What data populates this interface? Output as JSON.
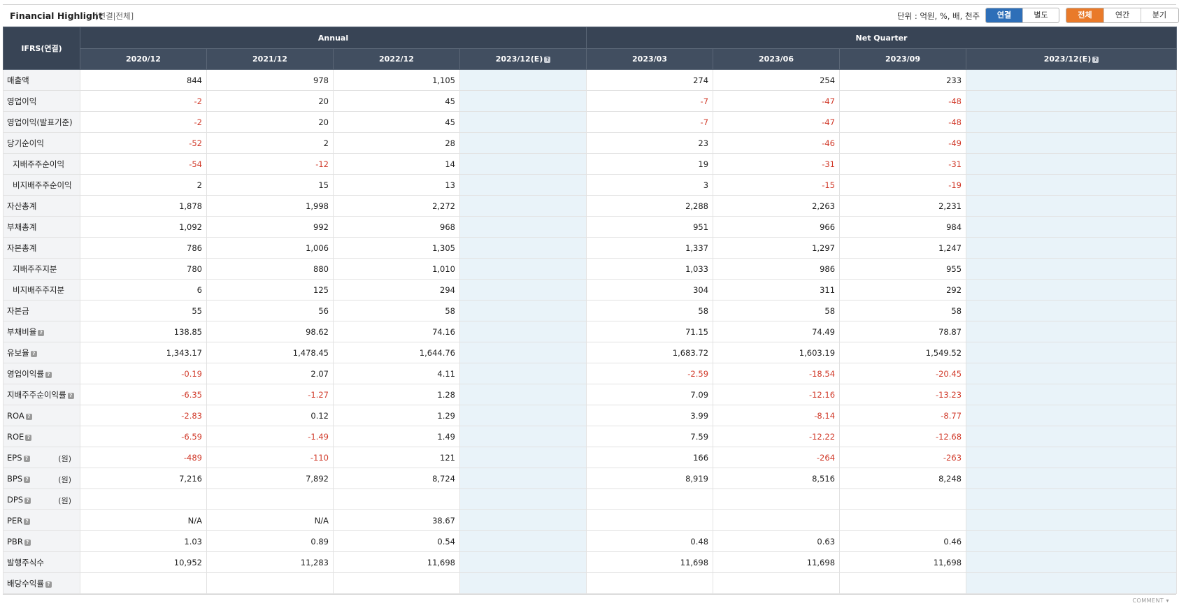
{
  "header": {
    "title": "Financial Highlight",
    "subtitle": "[연결|전체]",
    "unit_text": "단위 : 억원, %, 배, 천주",
    "basis_buttons": [
      {
        "label": "연결",
        "active": true
      },
      {
        "label": "별도",
        "active": false
      }
    ],
    "period_buttons": [
      {
        "label": "전체",
        "active": true
      },
      {
        "label": "연간",
        "active": false
      },
      {
        "label": "분기",
        "active": false
      }
    ]
  },
  "table": {
    "corner": "IFRS(연결)",
    "group_annual": "Annual",
    "group_quarter": "Net Quarter",
    "columns": [
      "2020/12",
      "2021/12",
      "2022/12",
      "2023/12(E)",
      "2023/03",
      "2023/06",
      "2023/09",
      "2023/12(E)"
    ],
    "question_icon": "?",
    "won_unit": "(원)",
    "rows": [
      {
        "label": "매출액",
        "indent": false,
        "help": false,
        "won": false,
        "values": [
          "844",
          "978",
          "1,105",
          "",
          "274",
          "254",
          "233",
          ""
        ]
      },
      {
        "label": "영업이익",
        "indent": false,
        "help": false,
        "won": false,
        "values": [
          "-2",
          "20",
          "45",
          "",
          "-7",
          "-47",
          "-48",
          ""
        ]
      },
      {
        "label": "영업이익(발표기준)",
        "indent": false,
        "help": false,
        "won": false,
        "values": [
          "-2",
          "20",
          "45",
          "",
          "-7",
          "-47",
          "-48",
          ""
        ]
      },
      {
        "label": "당기순이익",
        "indent": false,
        "help": false,
        "won": false,
        "values": [
          "-52",
          "2",
          "28",
          "",
          "23",
          "-46",
          "-49",
          ""
        ]
      },
      {
        "label": "지배주주순이익",
        "indent": true,
        "help": false,
        "won": false,
        "values": [
          "-54",
          "-12",
          "14",
          "",
          "19",
          "-31",
          "-31",
          ""
        ]
      },
      {
        "label": "비지배주주순이익",
        "indent": true,
        "help": false,
        "won": false,
        "values": [
          "2",
          "15",
          "13",
          "",
          "3",
          "-15",
          "-19",
          ""
        ]
      },
      {
        "label": "자산총계",
        "indent": false,
        "help": false,
        "won": false,
        "values": [
          "1,878",
          "1,998",
          "2,272",
          "",
          "2,288",
          "2,263",
          "2,231",
          ""
        ]
      },
      {
        "label": "부채총계",
        "indent": false,
        "help": false,
        "won": false,
        "values": [
          "1,092",
          "992",
          "968",
          "",
          "951",
          "966",
          "984",
          ""
        ]
      },
      {
        "label": "자본총계",
        "indent": false,
        "help": false,
        "won": false,
        "values": [
          "786",
          "1,006",
          "1,305",
          "",
          "1,337",
          "1,297",
          "1,247",
          ""
        ]
      },
      {
        "label": "지배주주지분",
        "indent": true,
        "help": false,
        "won": false,
        "values": [
          "780",
          "880",
          "1,010",
          "",
          "1,033",
          "986",
          "955",
          ""
        ]
      },
      {
        "label": "비지배주주지분",
        "indent": true,
        "help": false,
        "won": false,
        "values": [
          "6",
          "125",
          "294",
          "",
          "304",
          "311",
          "292",
          ""
        ]
      },
      {
        "label": "자본금",
        "indent": false,
        "help": false,
        "won": false,
        "values": [
          "55",
          "56",
          "58",
          "",
          "58",
          "58",
          "58",
          ""
        ]
      },
      {
        "label": "부채비율",
        "indent": false,
        "help": true,
        "won": false,
        "values": [
          "138.85",
          "98.62",
          "74.16",
          "",
          "71.15",
          "74.49",
          "78.87",
          ""
        ]
      },
      {
        "label": "유보율",
        "indent": false,
        "help": true,
        "won": false,
        "values": [
          "1,343.17",
          "1,478.45",
          "1,644.76",
          "",
          "1,683.72",
          "1,603.19",
          "1,549.52",
          ""
        ]
      },
      {
        "label": "영업이익률",
        "indent": false,
        "help": true,
        "won": false,
        "values": [
          "-0.19",
          "2.07",
          "4.11",
          "",
          "-2.59",
          "-18.54",
          "-20.45",
          ""
        ]
      },
      {
        "label": "지배주주순이익률",
        "indent": false,
        "help": true,
        "won": false,
        "values": [
          "-6.35",
          "-1.27",
          "1.28",
          "",
          "7.09",
          "-12.16",
          "-13.23",
          ""
        ]
      },
      {
        "label": "ROA",
        "indent": false,
        "help": true,
        "won": false,
        "values": [
          "-2.83",
          "0.12",
          "1.29",
          "",
          "3.99",
          "-8.14",
          "-8.77",
          ""
        ]
      },
      {
        "label": "ROE",
        "indent": false,
        "help": true,
        "won": false,
        "values": [
          "-6.59",
          "-1.49",
          "1.49",
          "",
          "7.59",
          "-12.22",
          "-12.68",
          ""
        ]
      },
      {
        "label": "EPS",
        "indent": false,
        "help": true,
        "won": true,
        "values": [
          "-489",
          "-110",
          "121",
          "",
          "166",
          "-264",
          "-263",
          ""
        ]
      },
      {
        "label": "BPS",
        "indent": false,
        "help": true,
        "won": true,
        "values": [
          "7,216",
          "7,892",
          "8,724",
          "",
          "8,919",
          "8,516",
          "8,248",
          ""
        ]
      },
      {
        "label": "DPS",
        "indent": false,
        "help": true,
        "won": true,
        "values": [
          "",
          "",
          "",
          "",
          "",
          "",
          "",
          ""
        ]
      },
      {
        "label": "PER",
        "indent": false,
        "help": true,
        "won": false,
        "values": [
          "N/A",
          "N/A",
          "38.67",
          "",
          "",
          "",
          "",
          ""
        ]
      },
      {
        "label": "PBR",
        "indent": false,
        "help": true,
        "won": false,
        "values": [
          "1.03",
          "0.89",
          "0.54",
          "",
          "0.48",
          "0.63",
          "0.46",
          ""
        ]
      },
      {
        "label": "발행주식수",
        "indent": false,
        "help": false,
        "won": false,
        "values": [
          "10,952",
          "11,283",
          "11,698",
          "",
          "11,698",
          "11,698",
          "11,698",
          ""
        ]
      },
      {
        "label": "배당수익률",
        "indent": false,
        "help": true,
        "won": false,
        "values": [
          "",
          "",
          "",
          "",
          "",
          "",
          "",
          ""
        ]
      }
    ]
  },
  "footer": {
    "comment": "COMMENT ▾"
  },
  "colors": {
    "header_bg": "#384455",
    "estimate_bg": "#e9f3f9",
    "negative": "#d13a2a",
    "active_blue": "#2e6fb8",
    "active_orange": "#e97a2a"
  }
}
